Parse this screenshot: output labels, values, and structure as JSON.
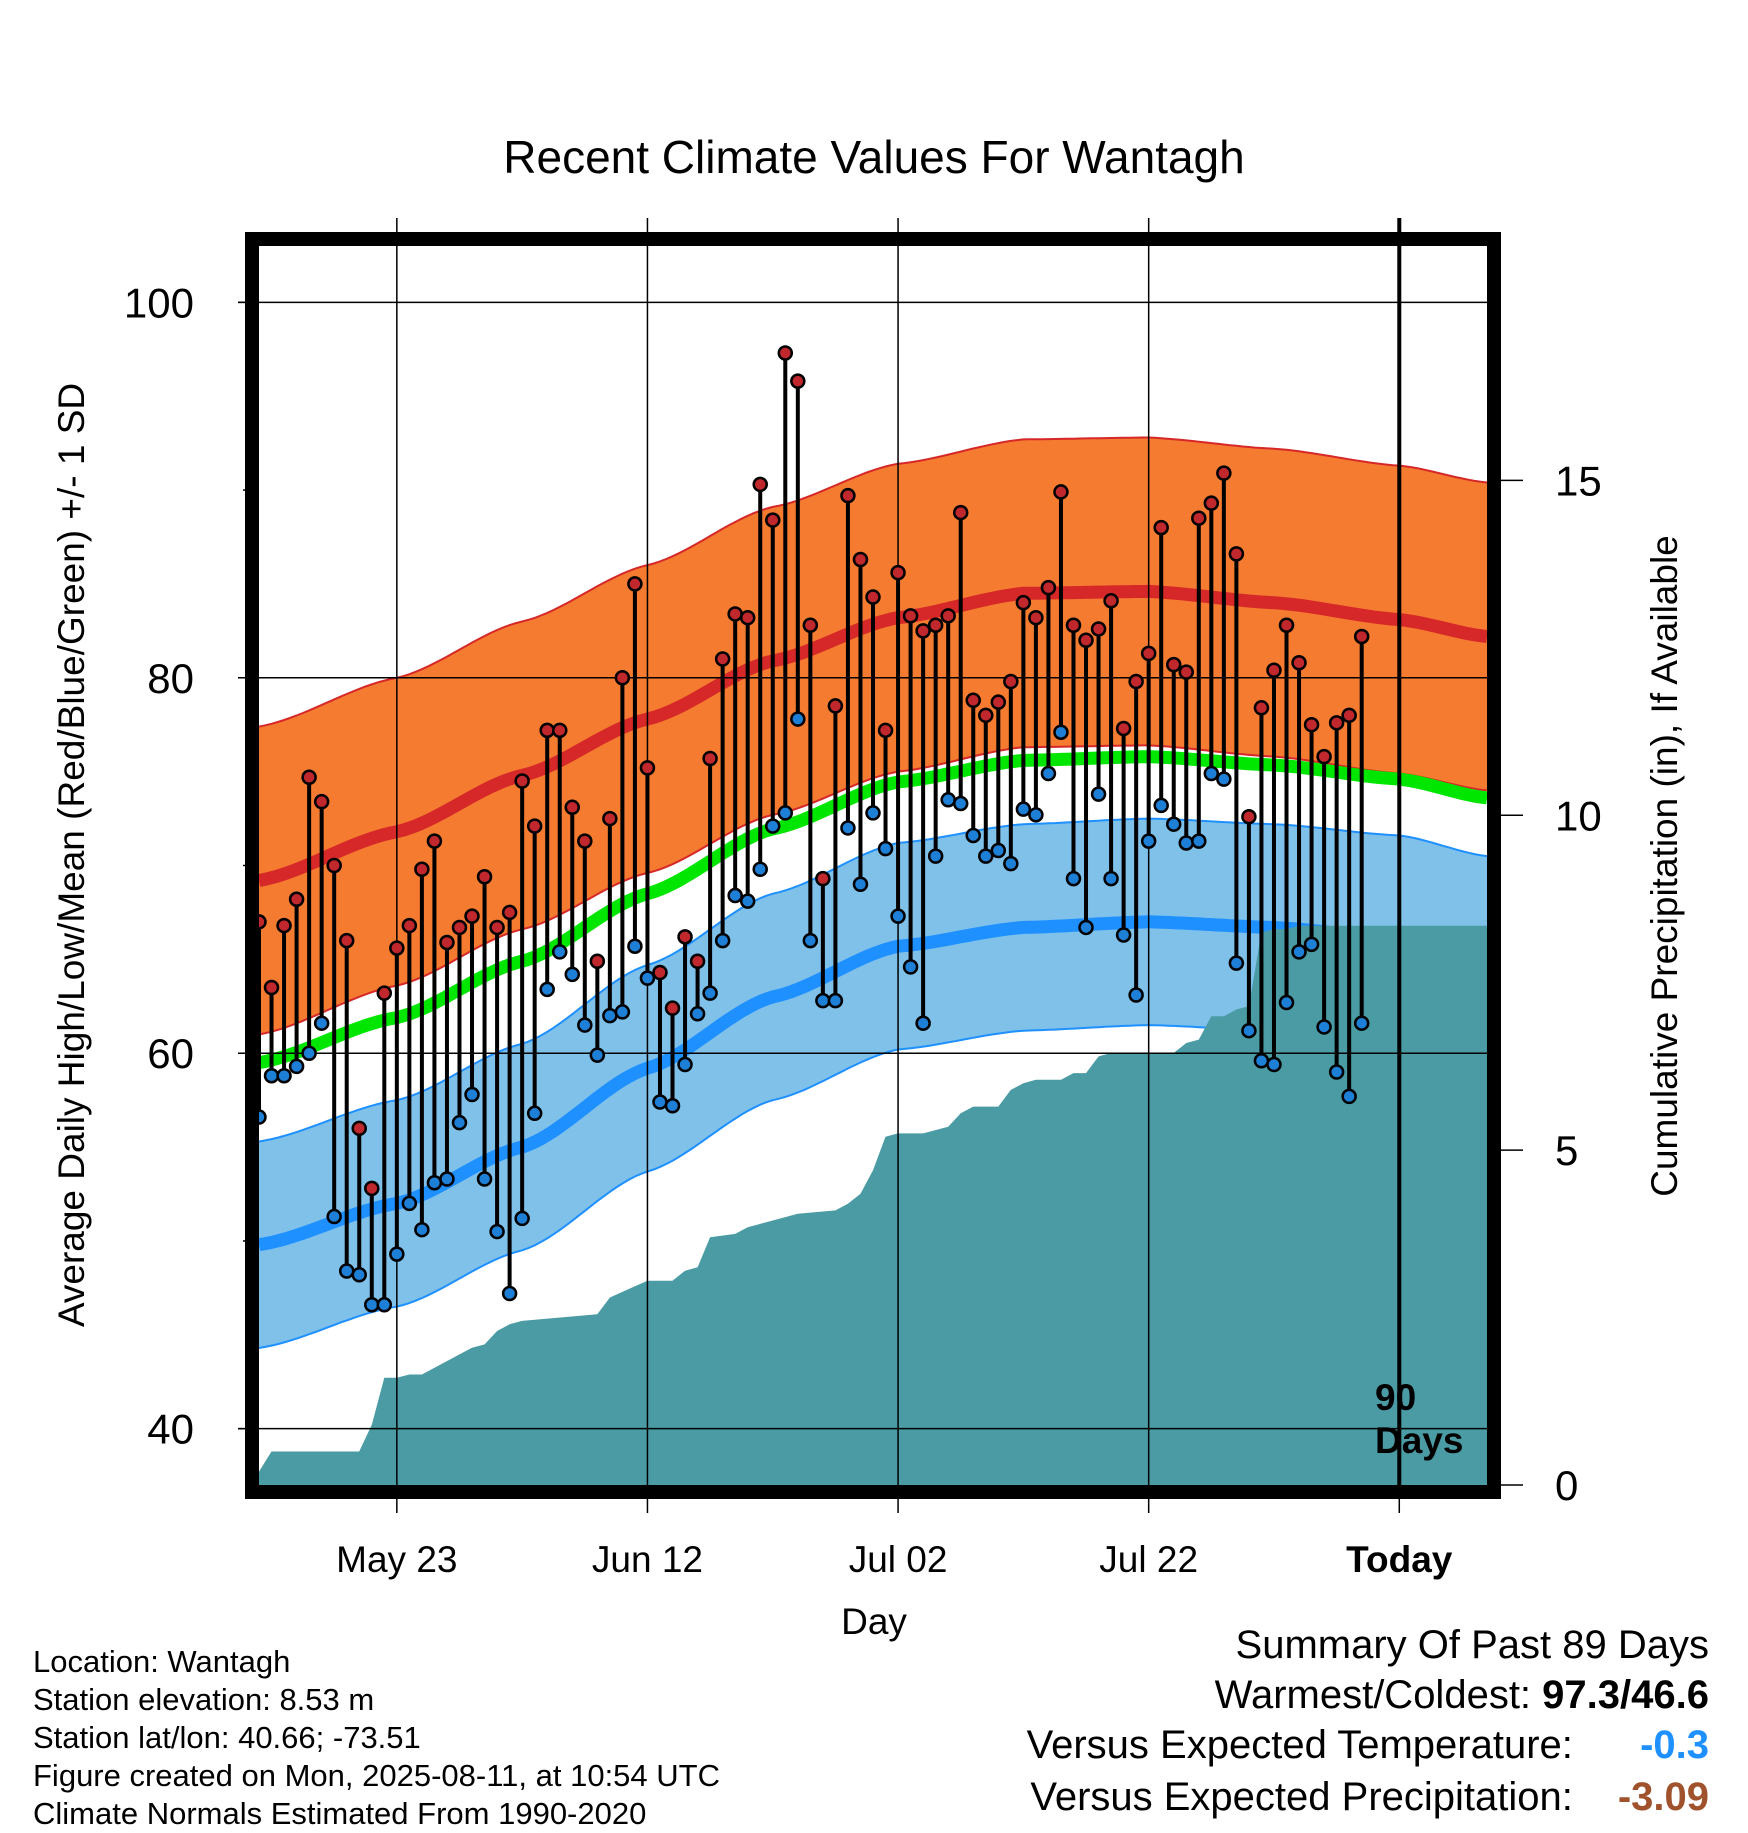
{
  "title": "Recent Climate Values For Wantagh",
  "y_left_label": "Average Daily High/Low/Mean (Red/Blue/Green) +/- 1 SD",
  "y_right_label": "Cumulative Precipitation (in), If Available",
  "x_label": "Day",
  "today_marker_label": [
    "90",
    "Days"
  ],
  "location_info": [
    "Location: Wantagh",
    "Station elevation: 8.53 m",
    "Station lat/lon: 40.66; -73.51",
    "Figure created on Mon, 2025-08-11, at 10:54 UTC",
    "Climate Normals Estimated From 1990-2020"
  ],
  "summary": {
    "heading": "Summary Of Past 89 Days",
    "warmest_coldest_label": "Warmest/Coldest:",
    "warmest_coldest_value": "97.3/46.6",
    "temp_label": "Versus Expected Temperature:",
    "temp_value": "-0.3",
    "temp_color": "#1e90ff",
    "precip_label": "Versus Expected Precipitation:",
    "precip_value": "-3.09",
    "precip_color": "#a0522d"
  },
  "chart_data": {
    "type": "line",
    "x_range_days": [
      -88,
      10
    ],
    "x_ticks": [
      {
        "day": -77,
        "label": "May 23"
      },
      {
        "day": -57,
        "label": "Jun 12"
      },
      {
        "day": -37,
        "label": "Jul 02"
      },
      {
        "day": -17,
        "label": "Jul 22"
      },
      {
        "day": 3,
        "label": "Today"
      }
    ],
    "y_left_range": [
      37,
      103
    ],
    "y_left_ticks": [
      40,
      60,
      80,
      100
    ],
    "y_left_minor_ticks": [
      50,
      70,
      90
    ],
    "y_right_range": [
      0,
      18.5
    ],
    "y_right_ticks": [
      0,
      5,
      10,
      15
    ],
    "colors": {
      "high_band": "#f47b30",
      "high_line": "#d62828",
      "low_band": "#80c1ea",
      "low_line": "#1e90ff",
      "mean_line": "#00e600",
      "precip_fill": "#4a9ba4",
      "high_dot": "#c0282d",
      "low_dot": "#1e7fd6"
    },
    "normals": {
      "note": "anchor days with normal high/low (deg F) and standard deviation",
      "days": [
        -88,
        -77,
        -67,
        -57,
        -47,
        -37,
        -27,
        -17,
        -7,
        3,
        10
      ],
      "high": [
        69.2,
        71.8,
        74.8,
        77.8,
        80.9,
        83.2,
        84.5,
        84.6,
        84.0,
        83.1,
        82.2
      ],
      "low": [
        49.8,
        52.0,
        55.0,
        59.2,
        63.0,
        65.7,
        66.7,
        67.0,
        66.7,
        66.1,
        65.0
      ],
      "high_sd": 8.2,
      "low_sd": 5.5
    },
    "observations": {
      "start_day": -88,
      "high": [
        67.0,
        63.5,
        66.8,
        68.2,
        74.7,
        73.4,
        70.0,
        66.0,
        56.0,
        52.8,
        63.2,
        65.6,
        66.8,
        69.8,
        71.3,
        65.9,
        66.7,
        67.3,
        69.4,
        66.7,
        67.5,
        74.5,
        72.1,
        77.2,
        77.2,
        73.1,
        71.3,
        64.9,
        72.5,
        80.0,
        85.0,
        75.2,
        64.3,
        62.4,
        66.2,
        64.9,
        75.7,
        81.0,
        83.4,
        83.2,
        90.3,
        88.4,
        97.3,
        95.8,
        82.8,
        69.3,
        78.5,
        89.7,
        86.3,
        84.3,
        77.2,
        85.6,
        83.3,
        82.5,
        82.8,
        83.3,
        88.8,
        78.8,
        78.0,
        78.7,
        79.8,
        84.0,
        83.2,
        84.8,
        89.9,
        82.8,
        82.0,
        82.6,
        84.1,
        77.3,
        79.8,
        81.3,
        88.0,
        80.7,
        80.3,
        88.5,
        89.3,
        90.9,
        86.6,
        72.6,
        78.4,
        80.4,
        82.8,
        80.8,
        77.5,
        75.8,
        77.6,
        78.0,
        82.2
      ],
      "low": [
        56.6,
        58.8,
        58.8,
        59.3,
        60.0,
        61.6,
        51.3,
        48.4,
        48.2,
        46.6,
        46.6,
        49.3,
        52.0,
        50.6,
        53.1,
        53.3,
        56.3,
        57.8,
        53.3,
        50.5,
        47.2,
        51.2,
        56.8,
        63.4,
        65.4,
        64.2,
        61.5,
        59.9,
        62.0,
        62.2,
        65.7,
        64.0,
        57.4,
        57.2,
        59.4,
        62.1,
        63.2,
        66.0,
        68.4,
        68.1,
        69.8,
        72.1,
        72.8,
        77.8,
        66.0,
        62.8,
        62.8,
        72.0,
        69.0,
        72.8,
        70.9,
        67.3,
        64.6,
        61.6,
        70.5,
        73.5,
        73.3,
        71.6,
        70.5,
        70.8,
        70.1,
        73.0,
        72.7,
        74.9,
        77.1,
        69.3,
        66.7,
        73.8,
        69.3,
        66.3,
        63.1,
        71.3,
        73.2,
        72.2,
        71.2,
        71.3,
        74.9,
        74.6,
        64.8,
        61.2,
        59.6,
        59.4,
        62.7,
        65.4,
        65.8,
        61.4,
        59.0,
        57.7,
        61.6
      ]
    },
    "precip_cumulative": {
      "days": [
        -88,
        -87,
        -80,
        -79,
        -78,
        -77,
        -76,
        -75,
        -72,
        -71,
        -70,
        -69,
        -68,
        -67,
        -61,
        -60,
        -57,
        -55,
        -54,
        -53,
        -52,
        -50,
        -49,
        -46,
        -45,
        -42,
        -41,
        -40,
        -39,
        -38,
        -37,
        -35,
        -33,
        -32,
        -31,
        -29,
        -28,
        -27,
        -26,
        -25,
        -24,
        -23,
        -22,
        -21,
        -20,
        -19,
        -18,
        -17,
        -15,
        -14,
        -13,
        -12,
        -11,
        -10,
        -9,
        -8,
        -7,
        -6,
        -5,
        -4,
        10
      ],
      "inches": [
        0.2,
        0.5,
        0.5,
        0.9,
        1.6,
        1.6,
        1.65,
        1.65,
        1.95,
        2.05,
        2.1,
        2.3,
        2.4,
        2.45,
        2.55,
        2.8,
        3.05,
        3.05,
        3.2,
        3.25,
        3.7,
        3.75,
        3.85,
        4.0,
        4.05,
        4.1,
        4.2,
        4.35,
        4.7,
        5.2,
        5.25,
        5.25,
        5.35,
        5.55,
        5.65,
        5.65,
        5.9,
        6.0,
        6.05,
        6.05,
        6.05,
        6.15,
        6.15,
        6.4,
        6.45,
        6.45,
        6.45,
        6.45,
        6.45,
        6.6,
        6.65,
        7.0,
        7.0,
        7.1,
        7.15,
        8.25,
        8.3,
        8.3,
        8.35,
        8.35,
        8.35
      ]
    }
  }
}
